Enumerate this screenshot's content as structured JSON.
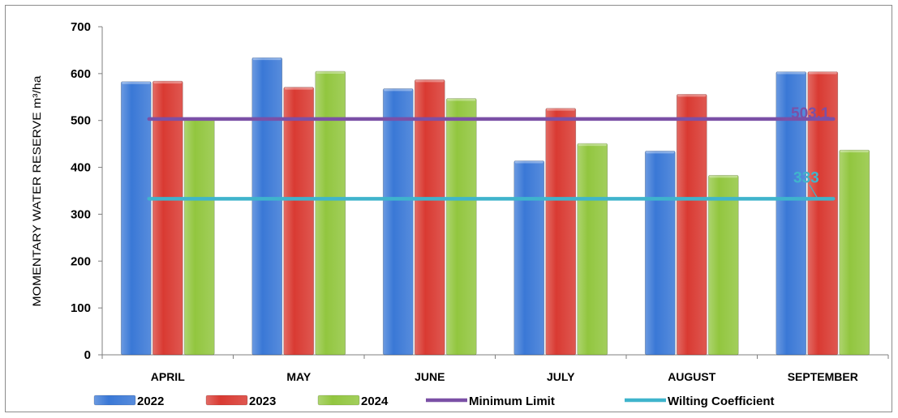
{
  "chart_data": {
    "type": "bar",
    "title": "",
    "xlabel": "",
    "ylabel": "MOMENTARY WATER RESERVE    m³/ha",
    "ylim": [
      0,
      700
    ],
    "yticks": [
      "0",
      "100",
      "200",
      "300",
      "400",
      "500",
      "600",
      "700"
    ],
    "grid": false,
    "legend_position": "bottom",
    "categories": [
      "APRIL",
      "MAY",
      "JUNE",
      "JULY",
      "AUGUST",
      "SEPTEMBER"
    ],
    "series": [
      {
        "name": "2022",
        "color": "#3a78d6",
        "values": [
          583,
          634,
          568,
          414,
          435,
          604
        ]
      },
      {
        "name": "2023",
        "color": "#d93a32",
        "values": [
          584,
          571,
          587,
          526,
          556,
          604
        ]
      },
      {
        "name": "2024",
        "color": "#92c63f",
        "values": [
          506,
          605,
          547,
          451,
          383,
          437
        ]
      }
    ],
    "reference_lines": [
      {
        "name": "Minimum Limit",
        "value": 503.1,
        "label": "503,1",
        "color": "#7b50a6"
      },
      {
        "name": "Wilting Coefficient",
        "value": 333,
        "label": "333",
        "color": "#3fb4cc"
      }
    ]
  }
}
